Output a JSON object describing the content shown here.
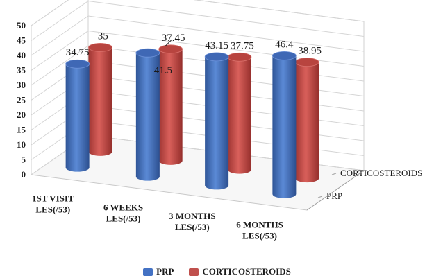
{
  "chart_data": {
    "type": "bar",
    "categories": [
      "1ST VISIT LES(/53)",
      "6 WEEKS LES(/53)",
      "3 MONTHS LES(/53)",
      "6 MONTHS LES(/53)"
    ],
    "series": [
      {
        "name": "PRP",
        "values": [
          34.75,
          41.5,
          43.15,
          46.4
        ],
        "labels": [
          "34.75",
          "41.5",
          "43.15",
          "46.4"
        ],
        "color": "#4472c4"
      },
      {
        "name": "CORTICOSTEROIDS",
        "values": [
          35,
          37.45,
          37.75,
          38.95
        ],
        "labels": [
          "35",
          "37.45",
          "37.75",
          "38.95"
        ],
        "color": "#c0504d"
      }
    ],
    "depth_axis_labels": [
      "CORTICOSTEROIDS",
      "PRP"
    ],
    "y_ticks": [
      "0",
      "5",
      "10",
      "15",
      "20",
      "25",
      "30",
      "35",
      "40",
      "45",
      "50"
    ],
    "ylim": [
      0,
      50
    ],
    "grid": true,
    "legend_position": "bottom",
    "bar_shape": "cylinder",
    "view": "3d"
  }
}
